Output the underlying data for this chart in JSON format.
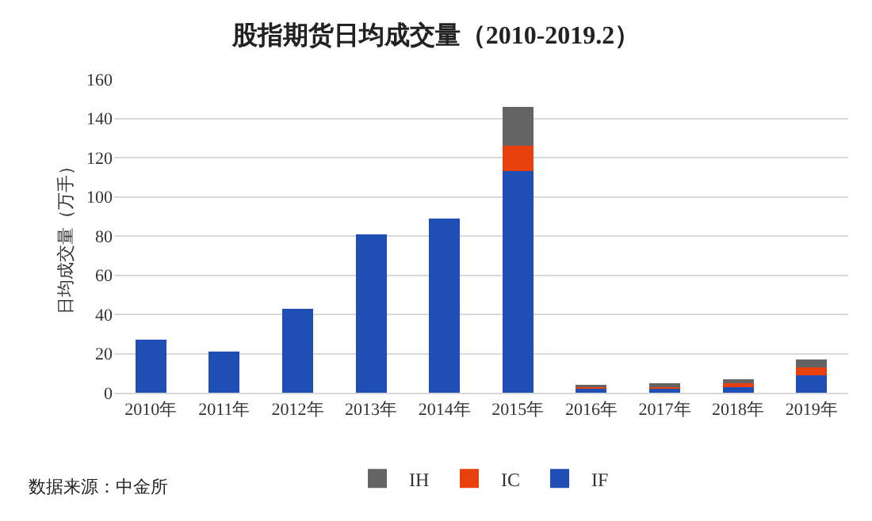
{
  "chart_data": {
    "type": "bar",
    "title": "股指期货日均成交量（2010-2019.2）",
    "ylabel": "日均成交量（万手）",
    "categories": [
      "2010年",
      "2011年",
      "2012年",
      "2013年",
      "2014年",
      "2015年",
      "2016年",
      "2017年",
      "2018年",
      "2019年"
    ],
    "series": [
      {
        "name": "IF",
        "color": "#1f4eb4",
        "values": [
          27,
          21,
          43,
          81,
          89,
          113,
          2,
          2,
          3,
          9
        ]
      },
      {
        "name": "IC",
        "color": "#e8400c",
        "values": [
          0,
          0,
          0,
          0,
          0,
          13,
          1,
          1,
          2,
          4
        ]
      },
      {
        "name": "IH",
        "color": "#646464",
        "values": [
          0,
          0,
          0,
          0,
          0,
          20,
          1,
          2,
          2,
          4
        ]
      }
    ],
    "stacked": true,
    "ylim": [
      0,
      160
    ],
    "yticks": [
      0,
      20,
      40,
      60,
      80,
      100,
      120,
      140,
      160
    ],
    "grid": "y",
    "legend": "bottom",
    "annotations": [
      "数据来源：中金所"
    ]
  }
}
